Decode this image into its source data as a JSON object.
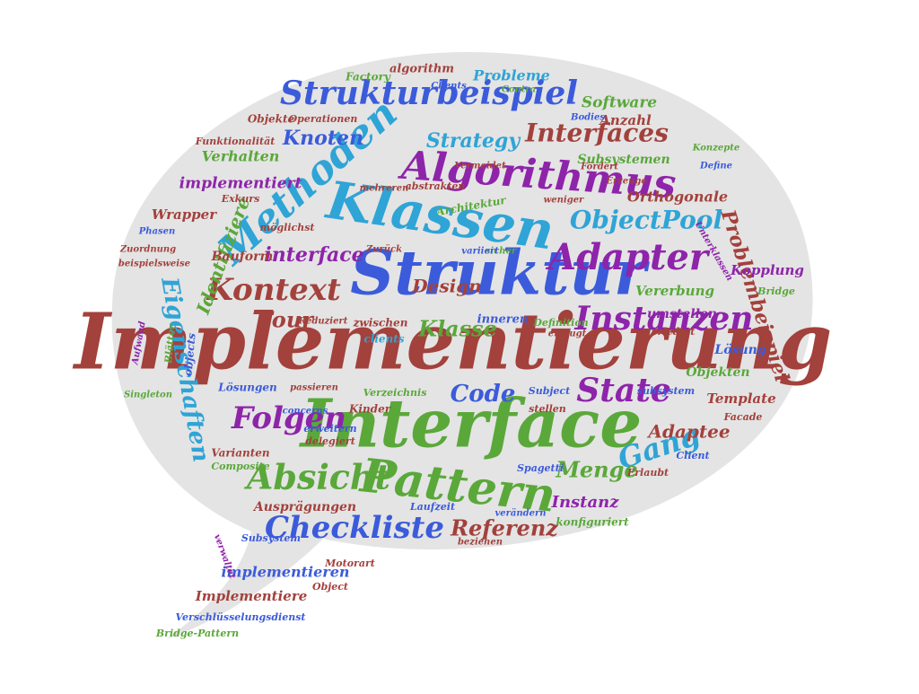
{
  "colors": {
    "bubble": "#e4e4e4",
    "blue": "#3b5bdb",
    "lightblue": "#2fa4d6",
    "green": "#5aa83a",
    "purple": "#8e24aa",
    "brown": "#a3413c",
    "violet": "#7b1fa2"
  },
  "words": {
    "implementierung": "Implementierung",
    "interface": "Interface",
    "struktur": "Struktur",
    "klassen": "Klassen",
    "pattern": "Pattern",
    "algorithmus": "Algorithmus",
    "methoden": "Methoden",
    "strukturbeispiel": "Strukturbeispiel",
    "adapter": "Adapter",
    "instanzen": "Instanzen",
    "kontext": "Kontext",
    "absicht": "Absicht",
    "checkliste": "Checkliste",
    "state": "State",
    "folgen": "Folgen",
    "objectpool": "ObjectPool",
    "interfaces": "Interfaces",
    "eigenschaften": "Eigenschaften",
    "gang": "Gang",
    "problembeispiel": "Problembeispiel",
    "klasse": "Klasse",
    "code": "Code",
    "referenz": "Referenz",
    "menge": "Menge",
    "four": "Four",
    "strategy": "Strategy",
    "knoten": "Knoten",
    "verhalten": "Verhalten",
    "implementiert": "implementiert",
    "identifiziere": "Identifiziere",
    "interface_lc": "interface",
    "design": "Design",
    "instanz": "Instanz",
    "adaptee": "Adaptee",
    "software": "Software",
    "probleme": "Probleme",
    "anzahl": "Anzahl",
    "orthogonale": "Orthogonale",
    "kopplung": "Kopplung",
    "vererbung": "Vererbung",
    "umstellen": "umstellen",
    "loesung": "Lösung",
    "objekten": "Objekten",
    "template": "Template",
    "implementieren": "implementieren",
    "implementiere": "Implementiere",
    "auspraegungen": "Ausprägungen",
    "wrapper": "Wrapper",
    "bauform": "Bauform",
    "subsystemen": "Subsystemen",
    "operationen": "Operationen",
    "objekte": "Objekte",
    "algorithm": "algorithm",
    "factory": "Factory",
    "funktionalitaet": "Funktionalität",
    "verschluesselungsdienst": "Verschlüsselungsdienst",
    "bridge_pattern": "Bridge-Pattern",
    "subsystem": "Subsystem",
    "laufzeit": "Laufzeit",
    "konfiguriert": "konfiguriert",
    "composite": "Composite",
    "varianten": "Varianten",
    "loesungen": "Lösungen",
    "kinder": "Kinder",
    "verzeichnis": "Verzeichnis",
    "zwischen": "zwischen",
    "inneren": "inneren",
    "clients": "clients",
    "definition": "Definition",
    "erledigt": "erledigt",
    "subject": "Subject",
    "stellen": "stellen",
    "facade": "Facade",
    "client": "Client",
    "erlaubt": "Erlaubt",
    "spagetti": "Spagetti",
    "delegiert": "delegiert",
    "motorart": "Motorart",
    "object": "Object",
    "architektur": "Architektur",
    "abstrakten": "abstrakten",
    "erweitern": "erweitern",
    "exkurs": "Exkurs",
    "moeglichst": "möglichst",
    "phasen": "Phasen",
    "zuordnung": "Zuordnung",
    "beispielsweise": "beispielsweise",
    "reduziert": "Reduziert",
    "passieren": "passieren",
    "concerns": "concerns",
    "singleton": "Singleton",
    "aufwand": "Aufwand",
    "blaetter": "Blätter",
    "objects": "objects",
    "konzepte": "Konzepte",
    "define": "Define",
    "bridge": "Bridge",
    "erzeuge": "Erzeuge",
    "weniger": "weniger",
    "foerdert": "Fördert",
    "vermeidet": "Vermeidet",
    "mehreren": "mehreren",
    "contra": "Contra",
    "bodies": "Bodies",
    "zurueck": "Zurück",
    "sicher": "sicher",
    "variiert": "variiert",
    "unterklassen": "Unterklassen",
    "erzeugt": "erzeugt",
    "aendern": "verändern",
    "beziehen": "beziehen",
    "clients_cap": "Clients",
    "verwaltet": "verwaltet",
    "subsystem_lc": "subsystem"
  }
}
